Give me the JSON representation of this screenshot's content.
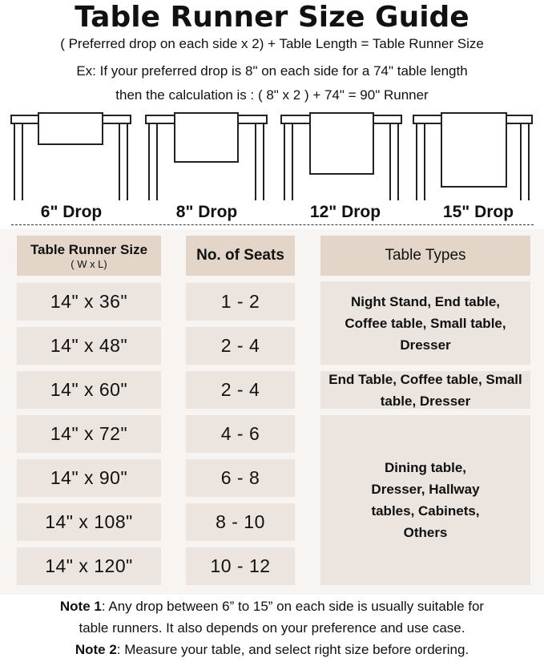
{
  "title": "Table Runner Size Guide",
  "formula": "( Preferred drop on each side x 2) + Table Length = Table Runner Size",
  "example_line1": "Ex: If your preferred drop is 8\" on each side for a 74\" table length",
  "example_line2": "then the calculation is : ( 8\" x 2 ) + 74\" = 90\" Runner",
  "drops": [
    "6\" Drop",
    "8\" Drop",
    "12\" Drop",
    "15\" Drop"
  ],
  "headers": {
    "size": "Table Runner Size",
    "size_sub": "( W x L)",
    "seats": "No. of Seats",
    "types": "Table Types"
  },
  "rows": [
    {
      "size": "14\" x 36\"",
      "seats": "1 - 2"
    },
    {
      "size": "14\" x 48\"",
      "seats": "2 - 4"
    },
    {
      "size": "14\" x 60\"",
      "seats": "2 - 4"
    },
    {
      "size": "14\" x 72\"",
      "seats": "4 - 6"
    },
    {
      "size": "14\" x 90\"",
      "seats": "6 - 8"
    },
    {
      "size": "14\" x 108\"",
      "seats": "8 - 10"
    },
    {
      "size": "14\" x 120\"",
      "seats": "10 - 12"
    }
  ],
  "table_types": [
    "Night Stand, End table, Coffee table, Small table, Dresser",
    "End Table, Coffee table, Small table, Dresser",
    "Dining table, Dresser, Hallway tables, Cabinets, Others"
  ],
  "notes": [
    {
      "label": "Note 1",
      "text": ": Any drop between 6” to 15” on each side is usually suitable for",
      "text2": "table runners. It also depends on your preference and use case."
    },
    {
      "label": "Note 2",
      "text": ": Measure your table, and select right size before ordering."
    }
  ],
  "colors": {
    "panel": "#f8f4f1",
    "header_cell": "#e3d6c8",
    "data_cell": "#ebe4df"
  }
}
